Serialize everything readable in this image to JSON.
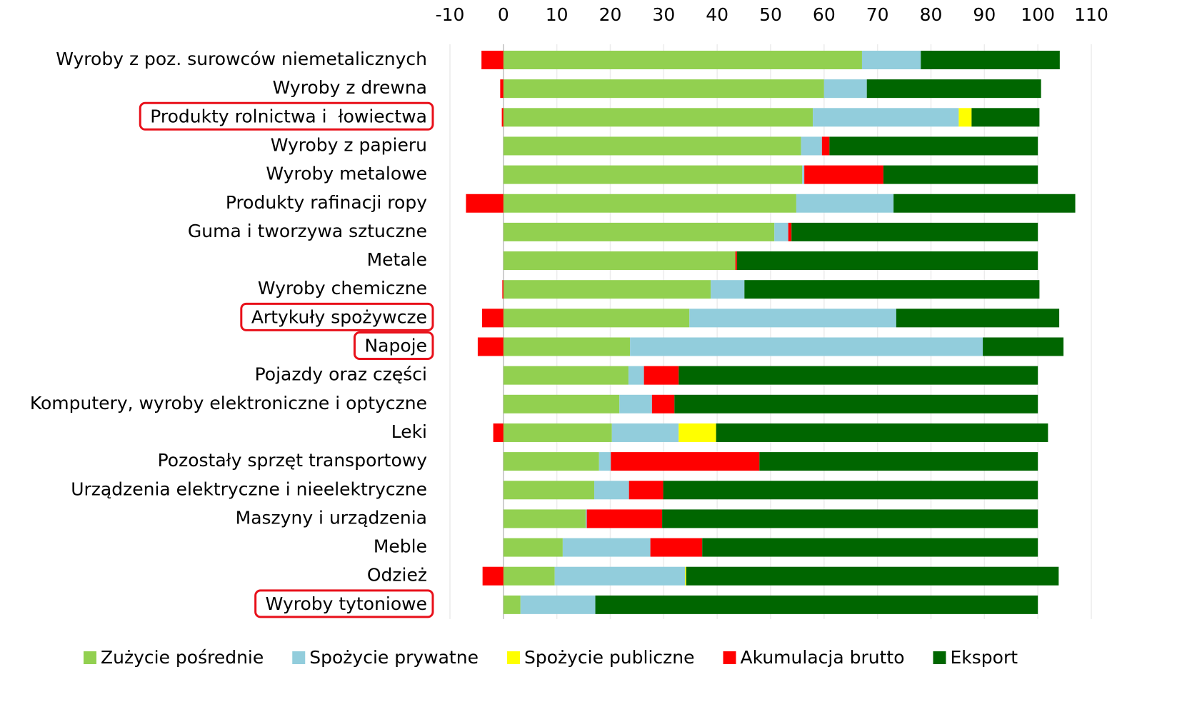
{
  "chart_data": {
    "type": "stacked-bar-horizontal",
    "categories": [
      "Wyroby z poz. surowców niemetalicznych",
      "Wyroby z drewna",
      "Produkty rolnictwa i  łowiectwa",
      "Wyroby z papieru",
      "Wyroby metalowe",
      "Produkty rafinacji ropy",
      "Guma i tworzywa sztuczne",
      "Metale",
      "Wyroby chemiczne",
      "Artykuły spożywcze",
      "Napoje",
      "Pojazdy oraz części",
      "Komputery, wyroby elektroniczne i optyczne",
      "Leki",
      "Pozostały sprzęt transportowy",
      "Urządzenia elektryczne i nieelektryczne",
      "Maszyny i urządzenia",
      "Meble",
      "Odzież",
      "Wyroby tytoniowe"
    ],
    "series": [
      {
        "name": "Zużycie pośrednie",
        "color": "#92d050",
        "values": [
          67.1,
          60.0,
          57.9,
          55.7,
          55.9,
          54.8,
          50.7,
          43.4,
          38.8,
          34.8,
          23.7,
          23.4,
          21.7,
          20.3,
          17.9,
          17.0,
          15.4,
          11.1,
          9.6,
          3.2
        ]
      },
      {
        "name": "Spożycie prywatne",
        "color": "#92cddc",
        "values": [
          11.0,
          8.0,
          27.3,
          3.9,
          0.4,
          18.2,
          2.6,
          0,
          6.3,
          38.7,
          66.0,
          2.9,
          6.1,
          12.5,
          2.2,
          6.5,
          0.2,
          16.4,
          24.4,
          14.0
        ]
      },
      {
        "name": "Spożycie publiczne",
        "color": "#ffff00",
        "values": [
          0,
          0,
          2.4,
          0,
          0,
          0,
          0,
          0,
          0,
          0,
          0,
          0,
          0,
          7.0,
          0,
          0,
          0,
          0,
          0.2,
          0
        ]
      },
      {
        "name": "Akumulacja brutto",
        "color": "#ff0000",
        "values": [
          -4.1,
          -0.6,
          -0.3,
          1.4,
          14.8,
          -7.0,
          0.6,
          0.3,
          -0.2,
          -4.0,
          -4.8,
          6.5,
          4.2,
          -1.9,
          27.8,
          6.4,
          14.1,
          9.7,
          -3.9,
          0
        ]
      },
      {
        "name": "Eksport",
        "color": "#006600",
        "values": [
          26.0,
          32.6,
          12.7,
          39.0,
          28.9,
          34.0,
          46.1,
          56.3,
          55.2,
          30.5,
          15.1,
          67.2,
          68.0,
          62.1,
          52.1,
          70.1,
          70.3,
          62.8,
          69.7,
          82.8
        ]
      }
    ],
    "xlim": [
      -10,
      110
    ],
    "xticks": [
      -10,
      0,
      10,
      20,
      30,
      40,
      50,
      60,
      70,
      80,
      90,
      100,
      110
    ],
    "grid": true,
    "legend": "bottom"
  }
}
